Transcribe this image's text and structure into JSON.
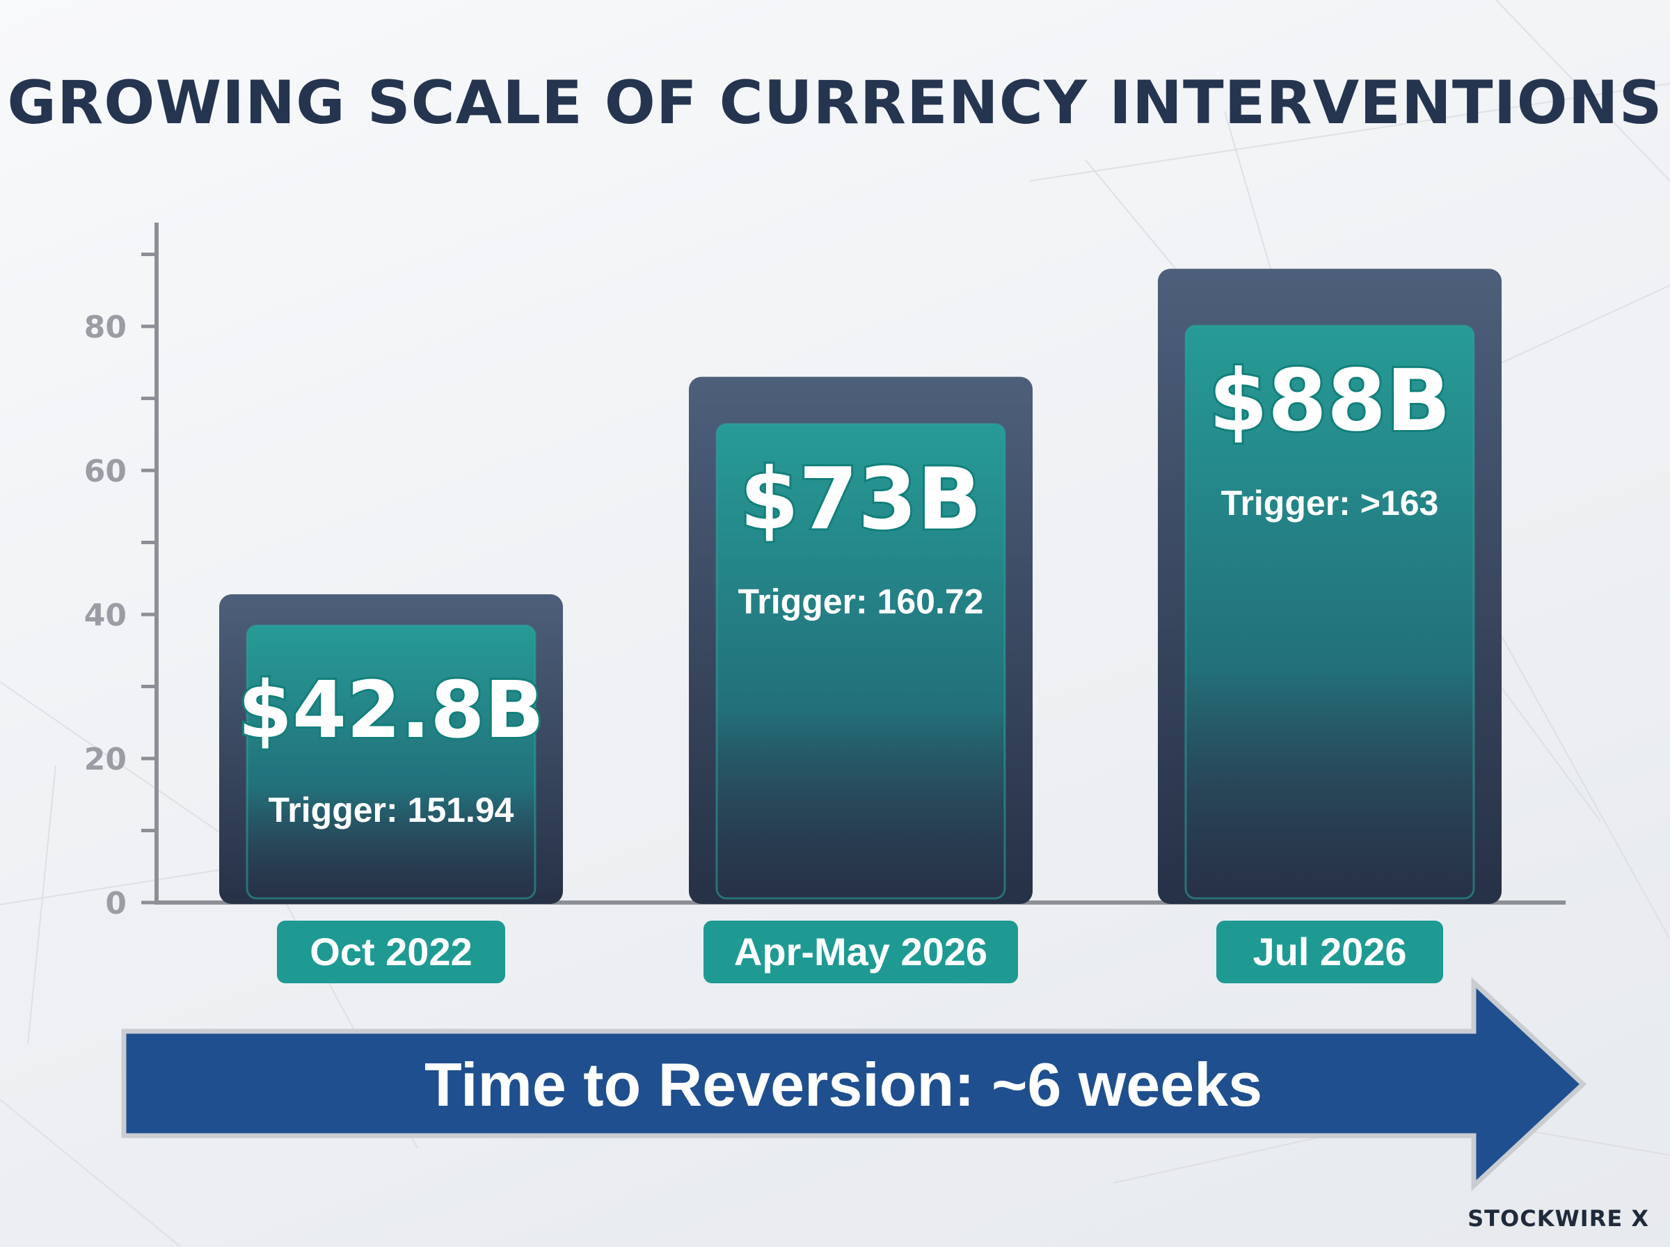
{
  "title": "GROWING SCALE OF CURRENCY INTERVENTIONS",
  "brand": "STOCKWIRE X",
  "colors": {
    "title": "#25344f",
    "outer_bar_top": "#4d5f7a",
    "outer_bar_bottom": "#263146",
    "inner_bar_top": "#279b96",
    "inner_bar_bottom": "#1d5a66",
    "category_pill": "#1e9a93",
    "arrow_fill": "#1f4f8e",
    "axis": "#8c8f95"
  },
  "arrow": {
    "label": "Time to Reversion: ~6 weeks"
  },
  "chart_data": {
    "type": "bar",
    "categories": [
      "Oct 2022",
      "Apr-May 2026",
      "Jul 2026"
    ],
    "values": [
      42.8,
      73,
      88
    ],
    "value_labels": [
      "$42.8B",
      "$73B",
      "$88B"
    ],
    "sub_labels": [
      "Trigger: 151.94",
      "Trigger: 160.72",
      "Trigger: >163"
    ],
    "title": "GROWING SCALE OF CURRENCY INTERVENTIONS",
    "xlabel": "",
    "ylabel": "",
    "ylim": [
      0,
      94
    ],
    "yticks": [
      0,
      20,
      40,
      60,
      80
    ],
    "minor_yticks": [
      10,
      30,
      50,
      70,
      90
    ],
    "grid": false,
    "legend": "none"
  }
}
